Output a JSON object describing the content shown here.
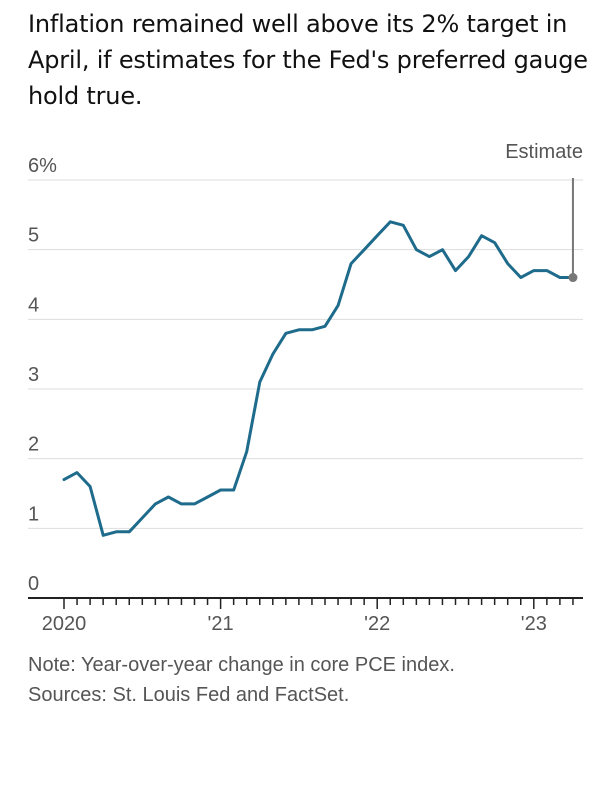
{
  "chart_data": {
    "type": "line",
    "title": "Inflation remained well above its 2% target in April, if estimates for the Fed's preferred gauge hold true.",
    "y_ticks": [
      "6%",
      "5",
      "4",
      "3",
      "2",
      "1",
      "0"
    ],
    "ylim": [
      0,
      6
    ],
    "x_tick_labels": [
      "2020",
      "'21",
      "'22",
      "'23"
    ],
    "x": [
      "2020-01",
      "2020-02",
      "2020-03",
      "2020-04",
      "2020-05",
      "2020-06",
      "2020-07",
      "2020-08",
      "2020-09",
      "2020-10",
      "2020-11",
      "2020-12",
      "2021-01",
      "2021-02",
      "2021-03",
      "2021-04",
      "2021-05",
      "2021-06",
      "2021-07",
      "2021-08",
      "2021-09",
      "2021-10",
      "2021-11",
      "2021-12",
      "2022-01",
      "2022-02",
      "2022-03",
      "2022-04",
      "2022-05",
      "2022-06",
      "2022-07",
      "2022-08",
      "2022-09",
      "2022-10",
      "2022-11",
      "2022-12",
      "2023-01",
      "2023-02",
      "2023-03",
      "2023-04"
    ],
    "series": [
      {
        "values": [
          1.7,
          1.8,
          1.6,
          0.9,
          0.95,
          0.95,
          1.15,
          1.35,
          1.45,
          1.35,
          1.35,
          1.45,
          1.55,
          1.55,
          2.1,
          3.1,
          3.5,
          3.8,
          3.85,
          3.85,
          3.9,
          4.2,
          4.8,
          5.0,
          5.2,
          5.4,
          5.35,
          5.0,
          4.9,
          5.0,
          4.7,
          4.9,
          5.2,
          5.1,
          4.8,
          4.6,
          4.7,
          4.7,
          4.6,
          4.6
        ]
      }
    ],
    "annotation": "Estimate",
    "grid": true,
    "line_color": "#1e6b8c",
    "estimate_color": "#777777",
    "note": "Note: Year-over-year change in core PCE index.",
    "sources": "Sources: St. Louis Fed and FactSet."
  }
}
